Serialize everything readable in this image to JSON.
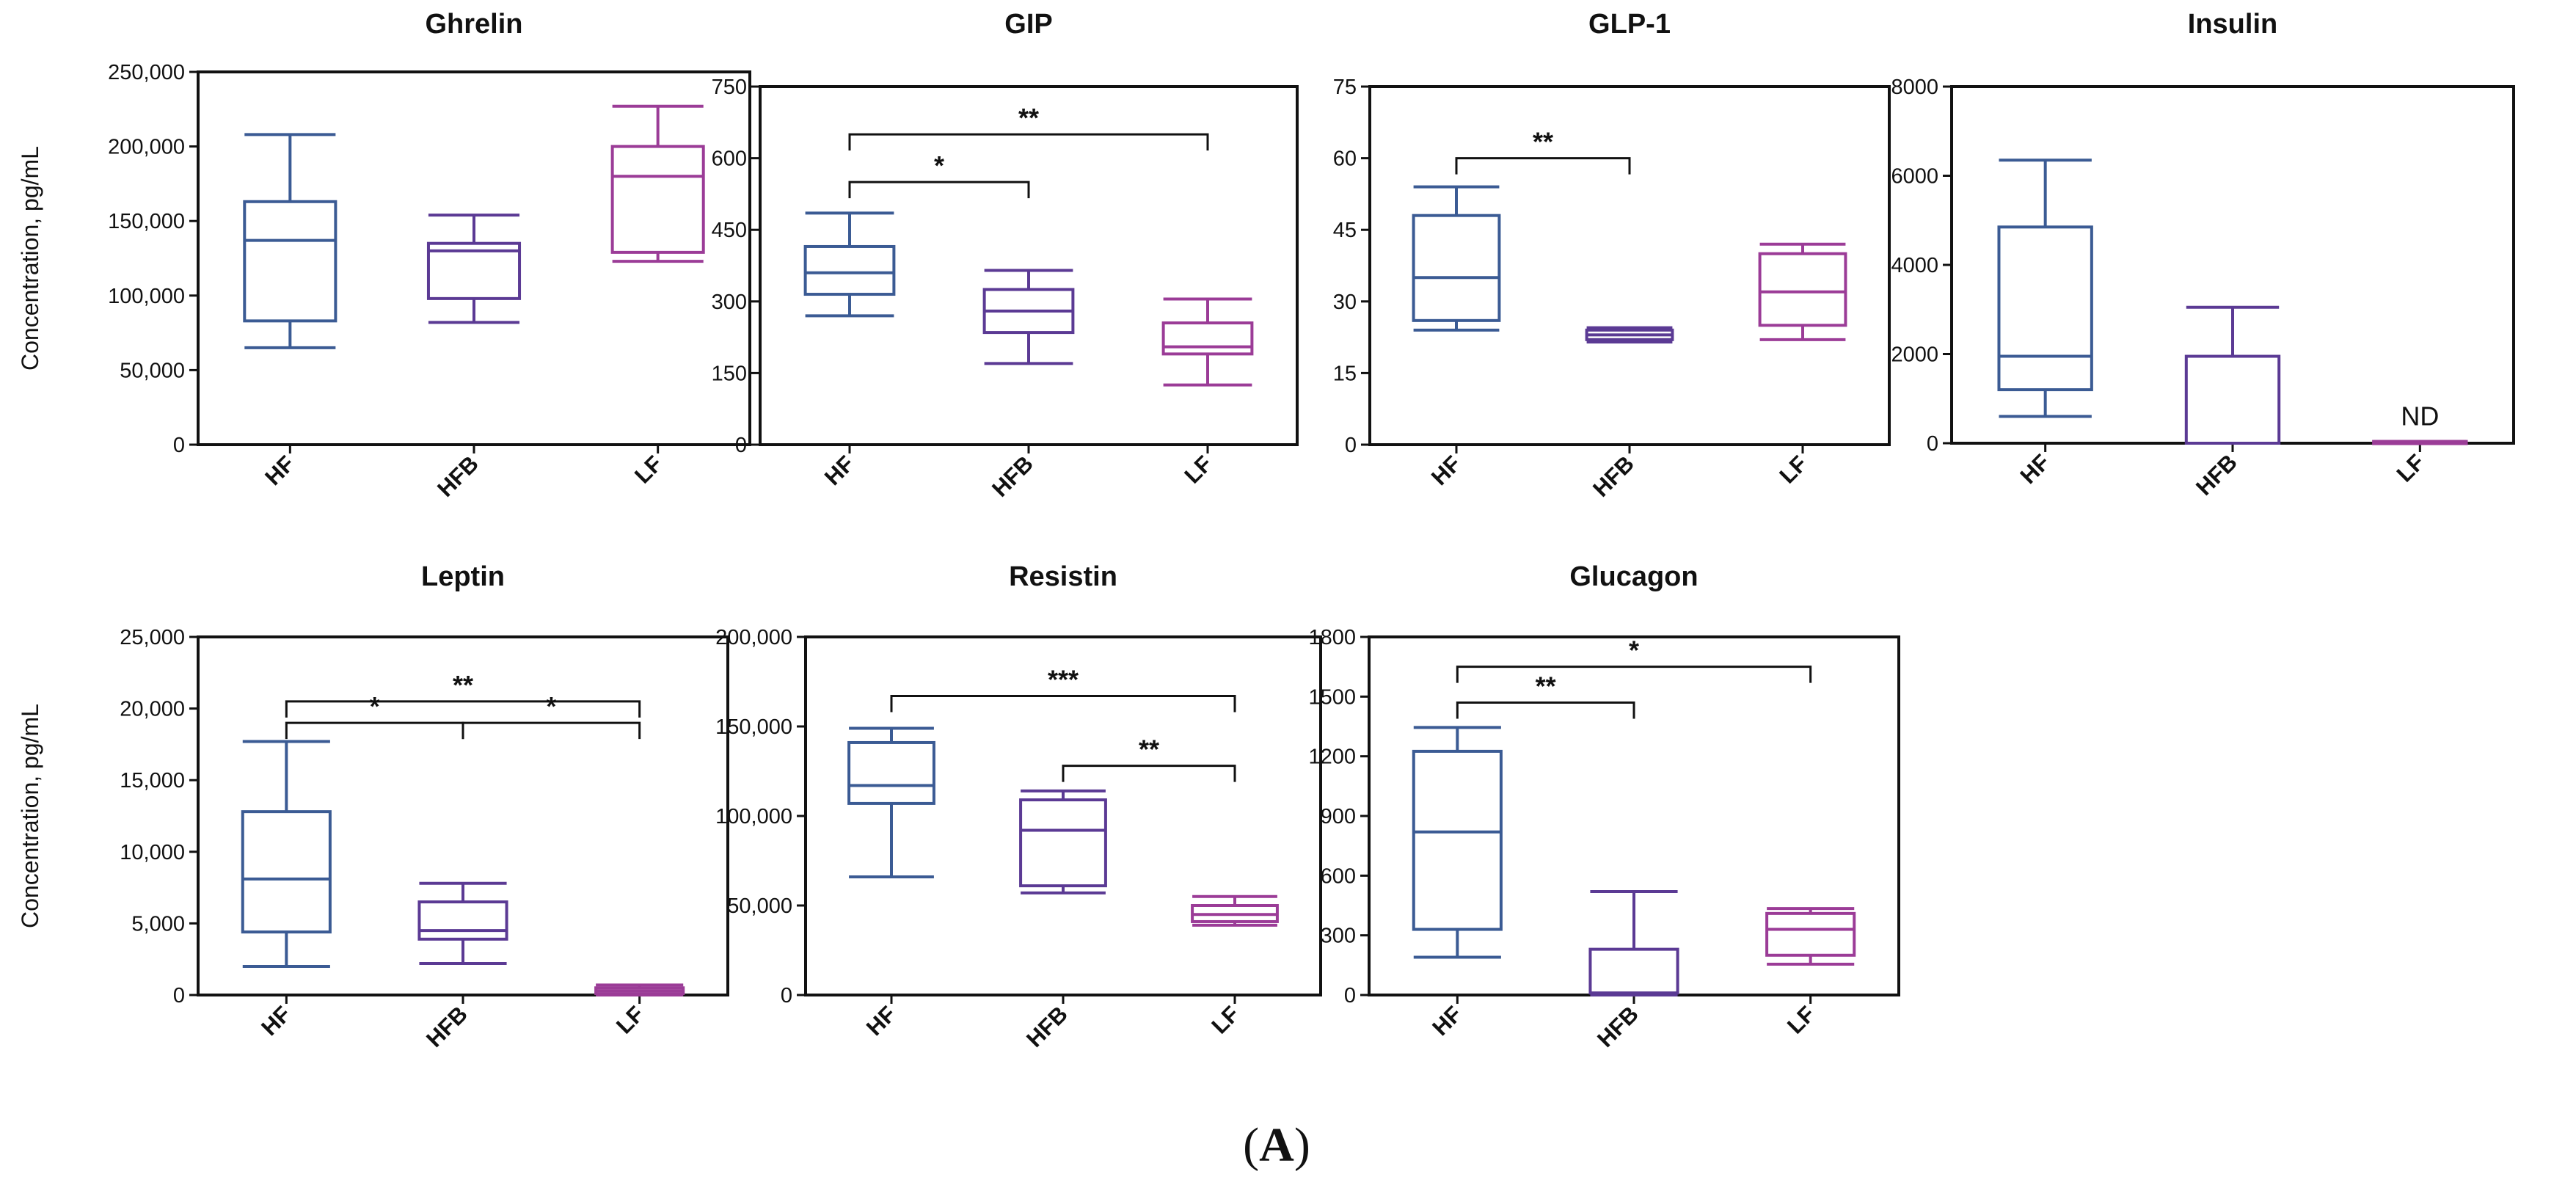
{
  "figure_label": "(A)",
  "y_axis_label": "Concentration, pg/mL",
  "colors": {
    "HF": "#3b5b94",
    "HFB": "#5b3a94",
    "LF": "#9b3c97",
    "axis": "#111111"
  },
  "chart_data": [
    {
      "type": "box",
      "title": "Ghrelin",
      "categories": [
        "HF",
        "HFB",
        "LF"
      ],
      "ylim": [
        0,
        250000
      ],
      "yticks": [
        0,
        50000,
        100000,
        150000,
        200000,
        250000
      ],
      "ytick_labels": [
        "0",
        "50,000",
        "100,000",
        "150,000",
        "200,000",
        "250,000"
      ],
      "ylabel": "Concentration, pg/mL",
      "boxes": [
        {
          "group": "HF",
          "min": 65000,
          "q1": 83000,
          "median": 137000,
          "q3": 163000,
          "max": 208000
        },
        {
          "group": "HFB",
          "min": 82000,
          "q1": 98000,
          "median": 130000,
          "q3": 135000,
          "max": 154000
        },
        {
          "group": "LF",
          "min": 123000,
          "q1": 129000,
          "median": 180000,
          "q3": 200000,
          "max": 227000
        }
      ],
      "significance": []
    },
    {
      "type": "box",
      "title": "GIP",
      "categories": [
        "HF",
        "HFB",
        "LF"
      ],
      "ylim": [
        0,
        750
      ],
      "yticks": [
        0,
        150,
        300,
        450,
        600,
        750
      ],
      "ytick_labels": [
        "0",
        "150",
        "300",
        "450",
        "600",
        "750"
      ],
      "ylabel": "",
      "boxes": [
        {
          "group": "HF",
          "min": 270,
          "q1": 315,
          "median": 360,
          "q3": 415,
          "max": 485
        },
        {
          "group": "HFB",
          "min": 170,
          "q1": 235,
          "median": 280,
          "q3": 325,
          "max": 365
        },
        {
          "group": "LF",
          "min": 125,
          "q1": 190,
          "median": 205,
          "q3": 255,
          "max": 305
        }
      ],
      "significance": [
        {
          "from": "HF",
          "to": "LF",
          "label": "**",
          "level": 650
        },
        {
          "from": "HF",
          "to": "HFB",
          "label": "*",
          "level": 550
        }
      ]
    },
    {
      "type": "box",
      "title": "GLP-1",
      "categories": [
        "HF",
        "HFB",
        "LF"
      ],
      "ylim": [
        0,
        75
      ],
      "yticks": [
        0,
        15,
        30,
        45,
        60,
        75
      ],
      "ytick_labels": [
        "0",
        "15",
        "30",
        "45",
        "60",
        "75"
      ],
      "ylabel": "",
      "boxes": [
        {
          "group": "HF",
          "min": 24,
          "q1": 26,
          "median": 35,
          "q3": 48,
          "max": 54
        },
        {
          "group": "HFB",
          "min": 21.5,
          "q1": 22,
          "median": 23,
          "q3": 24,
          "max": 24.5
        },
        {
          "group": "LF",
          "min": 22,
          "q1": 25,
          "median": 32,
          "q3": 40,
          "max": 42
        }
      ],
      "significance": [
        {
          "from": "HF",
          "to": "HFB",
          "label": "**",
          "level": 60
        }
      ]
    },
    {
      "type": "box",
      "title": "Insulin",
      "categories": [
        "HF",
        "HFB",
        "LF"
      ],
      "ylim": [
        0,
        8000
      ],
      "yticks": [
        0,
        2000,
        4000,
        6000,
        8000
      ],
      "ytick_labels": [
        "0",
        "2000",
        "4000",
        "6000",
        "8000"
      ],
      "ylabel": "",
      "boxes": [
        {
          "group": "HF",
          "min": 600,
          "q1": 1200,
          "median": 1950,
          "q3": 4850,
          "max": 6350
        },
        {
          "group": "HFB",
          "min": 0,
          "q1": 0,
          "median": 0,
          "q3": 1950,
          "max": 3050
        },
        {
          "group": "LF",
          "min": 0,
          "q1": 0,
          "median": 0,
          "q3": 40,
          "max": 40
        }
      ],
      "annotations": [
        {
          "group": "LF",
          "text": "ND",
          "y": 400
        }
      ],
      "significance": []
    },
    {
      "type": "box",
      "title": "Leptin",
      "categories": [
        "HF",
        "HFB",
        "LF"
      ],
      "ylim": [
        0,
        25000
      ],
      "yticks": [
        0,
        5000,
        10000,
        15000,
        20000,
        25000
      ],
      "ytick_labels": [
        "0",
        "5,000",
        "10,000",
        "15,000",
        "20,000",
        "25,000"
      ],
      "ylabel": "Concentration, pg/mL",
      "boxes": [
        {
          "group": "HF",
          "min": 2000,
          "q1": 4400,
          "median": 8100,
          "q3": 12800,
          "max": 17700
        },
        {
          "group": "HFB",
          "min": 2200,
          "q1": 3900,
          "median": 4500,
          "q3": 6500,
          "max": 7800
        },
        {
          "group": "LF",
          "min": 0,
          "q1": 100,
          "median": 300,
          "q3": 500,
          "max": 700
        }
      ],
      "significance": [
        {
          "from": "HF",
          "to": "LF",
          "label": "**",
          "level": 20500
        },
        {
          "from": "HF",
          "to": "HFB",
          "label": "*",
          "level": 19000
        },
        {
          "from": "HFB",
          "to": "LF",
          "label": "*",
          "level": 19000
        }
      ]
    },
    {
      "type": "box",
      "title": "Resistin",
      "categories": [
        "HF",
        "HFB",
        "LF"
      ],
      "ylim": [
        0,
        200000
      ],
      "yticks": [
        0,
        50000,
        100000,
        150000,
        200000
      ],
      "ytick_labels": [
        "0",
        "50,000",
        "100,000",
        "150,000",
        "200,000"
      ],
      "ylabel": "",
      "boxes": [
        {
          "group": "HF",
          "min": 66000,
          "q1": 107000,
          "median": 117000,
          "q3": 141000,
          "max": 149000
        },
        {
          "group": "HFB",
          "min": 57000,
          "q1": 61000,
          "median": 92000,
          "q3": 109000,
          "max": 114000
        },
        {
          "group": "LF",
          "min": 39000,
          "q1": 41000,
          "median": 45000,
          "q3": 50000,
          "max": 55000
        }
      ],
      "significance": [
        {
          "from": "HF",
          "to": "LF",
          "label": "***",
          "level": 167000
        },
        {
          "from": "HFB",
          "to": "LF",
          "label": "**",
          "level": 128000
        }
      ]
    },
    {
      "type": "box",
      "title": "Glucagon",
      "categories": [
        "HF",
        "HFB",
        "LF"
      ],
      "ylim": [
        0,
        1800
      ],
      "yticks": [
        0,
        300,
        600,
        900,
        1200,
        1500,
        1800
      ],
      "ytick_labels": [
        "0",
        "300",
        "600",
        "900",
        "1200",
        "1500",
        "1800"
      ],
      "ylabel": "",
      "boxes": [
        {
          "group": "HF",
          "min": 190,
          "q1": 330,
          "median": 820,
          "q3": 1225,
          "max": 1345
        },
        {
          "group": "HFB",
          "min": 0,
          "q1": 10,
          "median": 10,
          "q3": 230,
          "max": 520
        },
        {
          "group": "LF",
          "min": 155,
          "q1": 200,
          "median": 330,
          "q3": 410,
          "max": 435
        }
      ],
      "significance": [
        {
          "from": "HF",
          "to": "LF",
          "label": "*",
          "level": 1650
        },
        {
          "from": "HF",
          "to": "HFB",
          "label": "**",
          "level": 1470
        }
      ]
    }
  ]
}
